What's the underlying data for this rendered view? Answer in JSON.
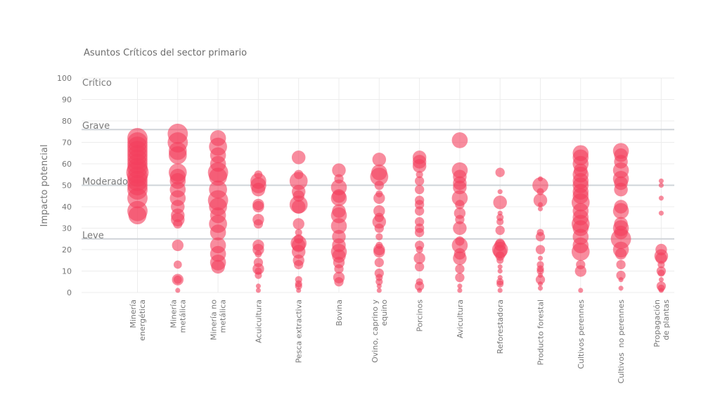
{
  "chart_data": {
    "type": "scatter",
    "title": "Asuntos Críticos del sector primario",
    "xlabel": "",
    "ylabel": "Impacto potencial",
    "ylim": [
      0,
      100
    ],
    "yticks": [
      0,
      10,
      20,
      30,
      40,
      50,
      60,
      70,
      80,
      90,
      100
    ],
    "grid": true,
    "marker_color": "#f43f5e",
    "thresholds": [
      {
        "label": "Crítico",
        "value": 100
      },
      {
        "label": "Grave",
        "value": 76
      },
      {
        "label": "Moderado",
        "value": 50
      },
      {
        "label": "Leve",
        "value": 25
      }
    ],
    "categories": [
      [
        "Minería",
        "energética"
      ],
      [
        "Minería",
        "metálica"
      ],
      [
        "Minería no",
        "metálica"
      ],
      [
        "Acuicultura"
      ],
      [
        "Pesca extractiva"
      ],
      [
        "Bovina"
      ],
      [
        "Ovino, caprino y",
        "equino"
      ],
      [
        "Porcinos"
      ],
      [
        "Avicultura"
      ],
      [
        "Reforestadora"
      ],
      [
        "Producto forestal"
      ],
      [
        "Cultivos perennes"
      ],
      [
        "Cultivos  no perennes"
      ],
      [
        "Propagación",
        "de plantas"
      ]
    ],
    "series": [
      {
        "name": "Minería energética",
        "points": [
          [
            72,
            8
          ],
          [
            70,
            8
          ],
          [
            68,
            8
          ],
          [
            66,
            8
          ],
          [
            64,
            8
          ],
          [
            62,
            8
          ],
          [
            60,
            8
          ],
          [
            58,
            8
          ],
          [
            56,
            9
          ],
          [
            54,
            8
          ],
          [
            52,
            8
          ],
          [
            50,
            8
          ],
          [
            48,
            8
          ],
          [
            44,
            8
          ],
          [
            38,
            8
          ],
          [
            36,
            7
          ]
        ]
      },
      {
        "name": "Minería metálica",
        "points": [
          [
            74,
            8
          ],
          [
            70,
            8
          ],
          [
            66,
            7
          ],
          [
            64,
            7
          ],
          [
            56,
            7
          ],
          [
            54,
            6
          ],
          [
            52,
            6
          ],
          [
            48,
            6
          ],
          [
            44,
            6
          ],
          [
            40,
            5
          ],
          [
            36,
            5
          ],
          [
            34,
            5
          ],
          [
            32,
            3
          ],
          [
            22,
            4
          ],
          [
            13,
            2.5
          ],
          [
            6,
            4
          ],
          [
            6,
            2.5
          ],
          [
            1,
            1
          ]
        ]
      },
      {
        "name": "Minería no metálica",
        "points": [
          [
            72,
            6
          ],
          [
            68,
            7
          ],
          [
            64,
            6
          ],
          [
            60,
            6
          ],
          [
            56,
            8
          ],
          [
            54,
            7
          ],
          [
            48,
            7
          ],
          [
            43,
            8
          ],
          [
            40,
            7
          ],
          [
            36,
            6
          ],
          [
            32,
            7
          ],
          [
            28,
            6
          ],
          [
            22,
            6
          ],
          [
            18,
            6
          ],
          [
            14,
            6
          ],
          [
            12,
            5
          ]
        ]
      },
      {
        "name": "Acuicultura",
        "points": [
          [
            55,
            2.5
          ],
          [
            52,
            6
          ],
          [
            50,
            6
          ],
          [
            48,
            5
          ],
          [
            41,
            4
          ],
          [
            40,
            4
          ],
          [
            34,
            4
          ],
          [
            32,
            3
          ],
          [
            22,
            4
          ],
          [
            20,
            4
          ],
          [
            18,
            2
          ],
          [
            14,
            3
          ],
          [
            11,
            4
          ],
          [
            10,
            2
          ],
          [
            8,
            2
          ],
          [
            3,
            1
          ],
          [
            1,
            1
          ]
        ]
      },
      {
        "name": "Pesca extractiva",
        "points": [
          [
            63,
            5
          ],
          [
            55,
            3
          ],
          [
            52,
            7
          ],
          [
            47,
            5
          ],
          [
            45,
            4
          ],
          [
            41,
            7
          ],
          [
            40,
            5
          ],
          [
            32,
            4
          ],
          [
            28,
            2
          ],
          [
            25,
            3
          ],
          [
            23,
            6
          ],
          [
            22,
            5
          ],
          [
            19,
            5
          ],
          [
            15,
            4
          ],
          [
            13,
            3
          ],
          [
            6,
            2
          ],
          [
            4,
            2
          ],
          [
            3,
            2
          ],
          [
            1,
            1
          ]
        ]
      },
      {
        "name": "Bovina",
        "points": [
          [
            57,
            5
          ],
          [
            53,
            3
          ],
          [
            49,
            6
          ],
          [
            45,
            5
          ],
          [
            44,
            6
          ],
          [
            38,
            5
          ],
          [
            36,
            6
          ],
          [
            31,
            6
          ],
          [
            26,
            5
          ],
          [
            22,
            5
          ],
          [
            19,
            6
          ],
          [
            17,
            5
          ],
          [
            14,
            4
          ],
          [
            11,
            3
          ],
          [
            7,
            4
          ],
          [
            5,
            3
          ]
        ]
      },
      {
        "name": "Ovino, caprino y equino",
        "points": [
          [
            62,
            5
          ],
          [
            56,
            6
          ],
          [
            54,
            7
          ],
          [
            50,
            3
          ],
          [
            46,
            2
          ],
          [
            44,
            4
          ],
          [
            38,
            4
          ],
          [
            35,
            3
          ],
          [
            33,
            5
          ],
          [
            30,
            3
          ],
          [
            26,
            2
          ],
          [
            22,
            2
          ],
          [
            20,
            4
          ],
          [
            19,
            4
          ],
          [
            14,
            3
          ],
          [
            9,
            3
          ],
          [
            7,
            2
          ],
          [
            5,
            2
          ],
          [
            3,
            1
          ],
          [
            1,
            1
          ]
        ]
      },
      {
        "name": "Porcinos",
        "points": [
          [
            63,
            5
          ],
          [
            61,
            5
          ],
          [
            59,
            5
          ],
          [
            55,
            2
          ],
          [
            52,
            3
          ],
          [
            48,
            3
          ],
          [
            43,
            3
          ],
          [
            41,
            3
          ],
          [
            38,
            3
          ],
          [
            33,
            3
          ],
          [
            30,
            3
          ],
          [
            28,
            3
          ],
          [
            22,
            3
          ],
          [
            20,
            2
          ],
          [
            16,
            4
          ],
          [
            12,
            3
          ],
          [
            5,
            2
          ],
          [
            3,
            3
          ],
          [
            1,
            1
          ]
        ]
      },
      {
        "name": "Avicultura",
        "points": [
          [
            71,
            6
          ],
          [
            57,
            6
          ],
          [
            54,
            5
          ],
          [
            51,
            5
          ],
          [
            49,
            5
          ],
          [
            44,
            6
          ],
          [
            41,
            3
          ],
          [
            37,
            4
          ],
          [
            34,
            3
          ],
          [
            30,
            5
          ],
          [
            24,
            3
          ],
          [
            22,
            6
          ],
          [
            18,
            4
          ],
          [
            16,
            5
          ],
          [
            11,
            3
          ],
          [
            7,
            3
          ],
          [
            3,
            1
          ],
          [
            1,
            1
          ]
        ]
      },
      {
        "name": "Reforestadora",
        "points": [
          [
            56,
            3
          ],
          [
            47,
            1
          ],
          [
            42,
            5
          ],
          [
            37,
            1
          ],
          [
            35,
            2
          ],
          [
            33,
            2
          ],
          [
            29,
            3
          ],
          [
            23,
            3
          ],
          [
            22,
            4
          ],
          [
            20,
            6
          ],
          [
            19,
            5
          ],
          [
            17,
            3
          ],
          [
            15,
            2
          ],
          [
            12,
            1
          ],
          [
            10,
            1
          ],
          [
            7,
            1
          ],
          [
            5,
            2
          ],
          [
            4,
            2
          ],
          [
            1,
            1
          ]
        ]
      },
      {
        "name": "Producto forestal",
        "points": [
          [
            53,
            1
          ],
          [
            50,
            6
          ],
          [
            47,
            2
          ],
          [
            43,
            5
          ],
          [
            41,
            1
          ],
          [
            39,
            1
          ],
          [
            28,
            2
          ],
          [
            26,
            3
          ],
          [
            20,
            3
          ],
          [
            16,
            1
          ],
          [
            13,
            2
          ],
          [
            11,
            2
          ],
          [
            10,
            2
          ],
          [
            8,
            1
          ],
          [
            6,
            3
          ],
          [
            4,
            1
          ],
          [
            2,
            1
          ]
        ]
      },
      {
        "name": "Cultivos perennes",
        "points": [
          [
            65,
            6
          ],
          [
            63,
            6
          ],
          [
            60,
            6
          ],
          [
            57,
            5
          ],
          [
            55,
            6
          ],
          [
            52,
            6
          ],
          [
            50,
            6
          ],
          [
            47,
            6
          ],
          [
            45,
            6
          ],
          [
            42,
            7
          ],
          [
            38,
            6
          ],
          [
            35,
            6
          ],
          [
            32,
            7
          ],
          [
            30,
            6
          ],
          [
            26,
            6
          ],
          [
            22,
            6
          ],
          [
            19,
            7
          ],
          [
            13,
            3
          ],
          [
            10,
            4
          ],
          [
            1,
            1
          ]
        ]
      },
      {
        "name": "Cultivos  no perennes",
        "points": [
          [
            66,
            6
          ],
          [
            64,
            5
          ],
          [
            61,
            5
          ],
          [
            57,
            6
          ],
          [
            53,
            6
          ],
          [
            51,
            5
          ],
          [
            48,
            5
          ],
          [
            40,
            5
          ],
          [
            38,
            6
          ],
          [
            32,
            5
          ],
          [
            30,
            6
          ],
          [
            28,
            5
          ],
          [
            25,
            8
          ],
          [
            20,
            6
          ],
          [
            18,
            4
          ],
          [
            13,
            3
          ],
          [
            8,
            3
          ],
          [
            6,
            1
          ],
          [
            2,
            1
          ]
        ]
      },
      {
        "name": "Propagación de plantas",
        "points": [
          [
            52,
            1
          ],
          [
            50,
            1
          ],
          [
            44,
            1
          ],
          [
            37,
            1
          ],
          [
            20,
            4
          ],
          [
            17,
            5
          ],
          [
            16,
            4
          ],
          [
            13,
            2
          ],
          [
            10,
            3
          ],
          [
            9,
            2
          ],
          [
            6,
            1
          ],
          [
            3,
            3
          ],
          [
            2,
            2
          ],
          [
            1,
            1
          ]
        ]
      }
    ]
  }
}
